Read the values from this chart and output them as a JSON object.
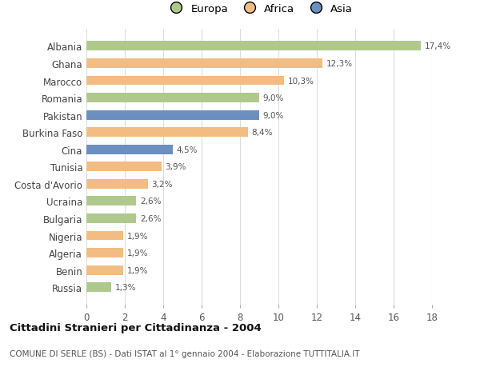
{
  "categories": [
    "Albania",
    "Ghana",
    "Marocco",
    "Romania",
    "Pakistan",
    "Burkina Faso",
    "Cina",
    "Tunisia",
    "Costa d'Avorio",
    "Ucraina",
    "Bulgaria",
    "Nigeria",
    "Algeria",
    "Benin",
    "Russia"
  ],
  "values": [
    17.4,
    12.3,
    10.3,
    9.0,
    9.0,
    8.4,
    4.5,
    3.9,
    3.2,
    2.6,
    2.6,
    1.9,
    1.9,
    1.9,
    1.3
  ],
  "labels": [
    "17,4%",
    "12,3%",
    "10,3%",
    "9,0%",
    "9,0%",
    "8,4%",
    "4,5%",
    "3,9%",
    "3,2%",
    "2,6%",
    "2,6%",
    "1,9%",
    "1,9%",
    "1,9%",
    "1,3%"
  ],
  "continents": [
    "Europa",
    "Africa",
    "Africa",
    "Europa",
    "Asia",
    "Africa",
    "Asia",
    "Africa",
    "Africa",
    "Europa",
    "Europa",
    "Africa",
    "Africa",
    "Africa",
    "Europa"
  ],
  "colors": {
    "Europa": "#afc98d",
    "Africa": "#f2bc82",
    "Asia": "#6b8fbf"
  },
  "title": "Cittadini Stranieri per Cittadinanza - 2004",
  "subtitle": "COMUNE DI SERLE (BS) - Dati ISTAT al 1° gennaio 2004 - Elaborazione TUTTITALIA.IT",
  "xlim": [
    0,
    18
  ],
  "xticks": [
    0,
    2,
    4,
    6,
    8,
    10,
    12,
    14,
    16,
    18
  ],
  "background_color": "#ffffff",
  "grid_color": "#dddddd"
}
